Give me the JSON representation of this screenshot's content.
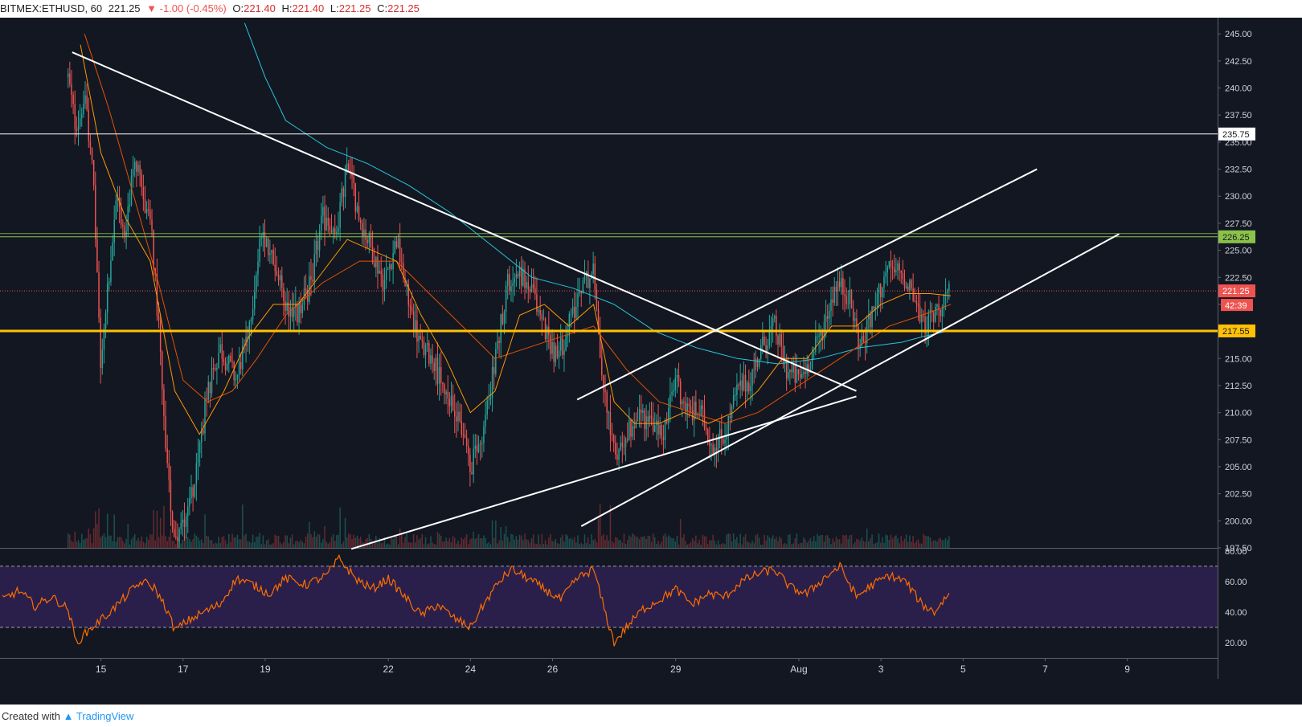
{
  "header": {
    "symbol": "BITMEX:ETHUSD, 60",
    "last": "221.25",
    "change": "▼ -1.00 (-0.45%)",
    "o_label": "O:",
    "o": "221.40",
    "h_label": "H:",
    "h": "221.40",
    "l_label": "L:",
    "l": "221.25",
    "c_label": "C:",
    "c": "221.25"
  },
  "footer": {
    "created_with": "Created with",
    "brand": "TradingView"
  },
  "colors": {
    "background": "#131722",
    "up": "#26a69a",
    "down": "#ef5350",
    "ma_fast": "#ff9800",
    "ma_slow": "#e65100",
    "ma_long": "#26c6da",
    "support": "#ffc107",
    "green_line": "#8bc34a",
    "rsi": "#ff6d00",
    "rsi_band": "#2a1f4a"
  },
  "chart_data": [
    {
      "type": "candlestick",
      "title": "",
      "price_axis": {
        "ylim": [
          197.5,
          246.5
        ],
        "ticks": [
          "245.00",
          "242.50",
          "240.00",
          "237.50",
          "235.00",
          "232.50",
          "230.00",
          "227.50",
          "225.00",
          "222.50",
          "220.00",
          "217.50",
          "215.00",
          "212.50",
          "210.00",
          "207.50",
          "205.00",
          "202.50",
          "200.00",
          "197.50"
        ]
      },
      "time_axis": {
        "ticks": [
          {
            "label": "15",
            "day": 15
          },
          {
            "label": "17",
            "day": 17
          },
          {
            "label": "19",
            "day": 19
          },
          {
            "label": "22",
            "day": 22
          },
          {
            "label": "24",
            "day": 24
          },
          {
            "label": "26",
            "day": 26
          },
          {
            "label": "29",
            "day": 29
          },
          {
            "label": "Aug",
            "day": 32
          },
          {
            "label": "3",
            "day": 34
          },
          {
            "label": "5",
            "day": 36
          },
          {
            "label": "7",
            "day": 38
          },
          {
            "label": "9",
            "day": 40
          }
        ],
        "xlim_days": [
          12.6,
          42.2
        ]
      },
      "price_series_anchors": [
        [
          14.2,
          241
        ],
        [
          14.4,
          236
        ],
        [
          14.6,
          239
        ],
        [
          14.8,
          233
        ],
        [
          15.0,
          214
        ],
        [
          15.2,
          223
        ],
        [
          15.4,
          230
        ],
        [
          15.6,
          226
        ],
        [
          15.8,
          234
        ],
        [
          16.0,
          230
        ],
        [
          16.2,
          228
        ],
        [
          16.4,
          218
        ],
        [
          16.6,
          205
        ],
        [
          16.8,
          198
        ],
        [
          17.0,
          200
        ],
        [
          17.3,
          204
        ],
        [
          17.6,
          212
        ],
        [
          17.9,
          216
        ],
        [
          18.3,
          213
        ],
        [
          18.6,
          218
        ],
        [
          18.9,
          226
        ],
        [
          19.2,
          224
        ],
        [
          19.5,
          220
        ],
        [
          19.8,
          219
        ],
        [
          20.1,
          222
        ],
        [
          20.4,
          228
        ],
        [
          20.7,
          226
        ],
        [
          21.0,
          233
        ],
        [
          21.3,
          228
        ],
        [
          21.6,
          225
        ],
        [
          21.9,
          222
        ],
        [
          22.2,
          226
        ],
        [
          22.5,
          220
        ],
        [
          22.8,
          216
        ],
        [
          23.1,
          215
        ],
        [
          23.4,
          211
        ],
        [
          23.7,
          210
        ],
        [
          24.0,
          205
        ],
        [
          24.3,
          208
        ],
        [
          24.6,
          215
        ],
        [
          24.9,
          222
        ],
        [
          25.2,
          223
        ],
        [
          25.5,
          221
        ],
        [
          25.8,
          218
        ],
        [
          26.1,
          215
        ],
        [
          26.4,
          218
        ],
        [
          26.7,
          222
        ],
        [
          27.0,
          223
        ],
        [
          27.2,
          214
        ],
        [
          27.5,
          206
        ],
        [
          27.8,
          208
        ],
        [
          28.1,
          210
        ],
        [
          28.4,
          209
        ],
        [
          28.7,
          208
        ],
        [
          29.0,
          213
        ],
        [
          29.3,
          210
        ],
        [
          29.6,
          210
        ],
        [
          29.9,
          207
        ],
        [
          30.2,
          208
        ],
        [
          30.5,
          212
        ],
        [
          30.8,
          213
        ],
        [
          31.1,
          216
        ],
        [
          31.4,
          218
        ],
        [
          31.7,
          214
        ],
        [
          32.0,
          213
        ],
        [
          32.3,
          215
        ],
        [
          32.6,
          218
        ],
        [
          32.9,
          222
        ],
        [
          33.2,
          221
        ],
        [
          33.5,
          216
        ],
        [
          33.8,
          219
        ],
        [
          34.1,
          223
        ],
        [
          34.4,
          223
        ],
        [
          34.7,
          222
        ],
        [
          35.0,
          218
        ],
        [
          35.3,
          219
        ],
        [
          35.6,
          221
        ],
        [
          35.7,
          221.25
        ]
      ],
      "moving_averages": [
        {
          "color_key": "ma_long",
          "points": [
            [
              18.5,
              246
            ],
            [
              19.0,
              241
            ],
            [
              19.5,
              237
            ],
            [
              20.5,
              234.5
            ],
            [
              21.5,
              233
            ],
            [
              22.5,
              231
            ],
            [
              23.5,
              228.5
            ],
            [
              24.5,
              225.5
            ],
            [
              25.5,
              222.5
            ],
            [
              26.5,
              221.5
            ],
            [
              27.5,
              220
            ],
            [
              28.5,
              217.5
            ],
            [
              29.5,
              216
            ],
            [
              30.5,
              215
            ],
            [
              31.5,
              214.5
            ],
            [
              32.5,
              215
            ],
            [
              33.5,
              216
            ],
            [
              34.5,
              216.5
            ],
            [
              35.0,
              217
            ],
            [
              35.7,
              217.6
            ]
          ]
        },
        {
          "color_key": "ma_slow",
          "points": [
            [
              14.6,
              245
            ],
            [
              15.2,
              238
            ],
            [
              15.8,
              230
            ],
            [
              16.4,
              222
            ],
            [
              17.0,
              213
            ],
            [
              17.6,
              211
            ],
            [
              18.2,
              212
            ],
            [
              18.8,
              215
            ],
            [
              19.5,
              219
            ],
            [
              20.4,
              222
            ],
            [
              21.3,
              224
            ],
            [
              22.2,
              224
            ],
            [
              23.0,
              221
            ],
            [
              23.8,
              218
            ],
            [
              24.6,
              215
            ],
            [
              25.4,
              216
            ],
            [
              26.2,
              217
            ],
            [
              27.0,
              218
            ],
            [
              27.8,
              214
            ],
            [
              28.6,
              211
            ],
            [
              29.4,
              210
            ],
            [
              30.2,
              209
            ],
            [
              31.0,
              210
            ],
            [
              31.8,
              212
            ],
            [
              32.6,
              214
            ],
            [
              33.4,
              216
            ],
            [
              34.2,
              218
            ],
            [
              35.0,
              219
            ],
            [
              35.7,
              220
            ]
          ]
        },
        {
          "color_key": "ma_fast",
          "points": [
            [
              14.5,
              244
            ],
            [
              15.0,
              234
            ],
            [
              15.6,
              228
            ],
            [
              16.2,
              224
            ],
            [
              16.8,
              212
            ],
            [
              17.4,
              208
            ],
            [
              18.0,
              212
            ],
            [
              18.6,
              217
            ],
            [
              19.2,
              220
            ],
            [
              19.8,
              220
            ],
            [
              20.4,
              223
            ],
            [
              21.0,
              226
            ],
            [
              21.6,
              225
            ],
            [
              22.2,
              224
            ],
            [
              22.8,
              219
            ],
            [
              23.4,
              215
            ],
            [
              24.0,
              210
            ],
            [
              24.6,
              212
            ],
            [
              25.2,
              219
            ],
            [
              25.8,
              220
            ],
            [
              26.4,
              218
            ],
            [
              27.0,
              220
            ],
            [
              27.5,
              211
            ],
            [
              28.0,
              209
            ],
            [
              28.6,
              209
            ],
            [
              29.2,
              210
            ],
            [
              29.8,
              209
            ],
            [
              30.4,
              210
            ],
            [
              31.0,
              212
            ],
            [
              31.6,
              215
            ],
            [
              32.2,
              215
            ],
            [
              32.8,
              218
            ],
            [
              33.4,
              218
            ],
            [
              34.0,
              220
            ],
            [
              34.6,
              221
            ],
            [
              35.2,
              221
            ],
            [
              35.7,
              220.8
            ]
          ]
        }
      ],
      "horizontal_levels": [
        {
          "price": 235.75,
          "label": "235.75",
          "color_key": "line_white"
        },
        {
          "price": 226.25,
          "label": "226.25",
          "color_key": "green_line"
        },
        {
          "price": 217.55,
          "label": "217.55",
          "color_key": "support"
        },
        {
          "price": 221.25,
          "label": "221.25",
          "color_key": "down",
          "dotted": true
        }
      ],
      "countdown_label": "42:39",
      "trendlines": [
        {
          "from": [
            14.3,
            243.3
          ],
          "to": [
            33.4,
            212
          ]
        },
        {
          "from": [
            21.1,
            197.4
          ],
          "to": [
            33.4,
            211.5
          ]
        },
        {
          "from": [
            26.6,
            211.2
          ],
          "to": [
            37.8,
            232.5
          ]
        },
        {
          "from": [
            26.7,
            199.5
          ],
          "to": [
            39.8,
            226.5
          ]
        }
      ]
    },
    {
      "type": "line",
      "title": "",
      "name": "",
      "ylim": [
        10,
        81
      ],
      "ticks": [
        "80.00",
        "60.00",
        "40.00",
        "20.00"
      ],
      "band": [
        30,
        70
      ],
      "points": [
        [
          12.6,
          48
        ],
        [
          13.0,
          54
        ],
        [
          13.4,
          44
        ],
        [
          13.8,
          50
        ],
        [
          14.2,
          42
        ],
        [
          14.4,
          20
        ],
        [
          14.7,
          28
        ],
        [
          15.0,
          35
        ],
        [
          15.3,
          42
        ],
        [
          15.7,
          53
        ],
        [
          16.0,
          60
        ],
        [
          16.3,
          56
        ],
        [
          16.6,
          42
        ],
        [
          16.8,
          28
        ],
        [
          17.1,
          34
        ],
        [
          17.5,
          40
        ],
        [
          17.9,
          45
        ],
        [
          18.3,
          62
        ],
        [
          18.7,
          58
        ],
        [
          19.1,
          52
        ],
        [
          19.5,
          62
        ],
        [
          20.0,
          58
        ],
        [
          20.5,
          64
        ],
        [
          20.8,
          75
        ],
        [
          21.2,
          62
        ],
        [
          21.6,
          55
        ],
        [
          22.0,
          62
        ],
        [
          22.4,
          50
        ],
        [
          22.8,
          38
        ],
        [
          23.2,
          45
        ],
        [
          23.6,
          36
        ],
        [
          24.0,
          30
        ],
        [
          24.3,
          44
        ],
        [
          24.7,
          60
        ],
        [
          25.0,
          68
        ],
        [
          25.4,
          62
        ],
        [
          25.8,
          55
        ],
        [
          26.2,
          48
        ],
        [
          26.6,
          62
        ],
        [
          27.0,
          68
        ],
        [
          27.3,
          38
        ],
        [
          27.5,
          20
        ],
        [
          27.8,
          30
        ],
        [
          28.2,
          42
        ],
        [
          28.6,
          48
        ],
        [
          29.0,
          55
        ],
        [
          29.4,
          45
        ],
        [
          29.8,
          52
        ],
        [
          30.2,
          50
        ],
        [
          30.6,
          60
        ],
        [
          31.0,
          65
        ],
        [
          31.4,
          68
        ],
        [
          31.8,
          56
        ],
        [
          32.2,
          52
        ],
        [
          32.6,
          62
        ],
        [
          33.0,
          70
        ],
        [
          33.4,
          50
        ],
        [
          33.8,
          58
        ],
        [
          34.2,
          64
        ],
        [
          34.6,
          60
        ],
        [
          35.0,
          45
        ],
        [
          35.3,
          40
        ],
        [
          35.7,
          54
        ]
      ]
    }
  ]
}
